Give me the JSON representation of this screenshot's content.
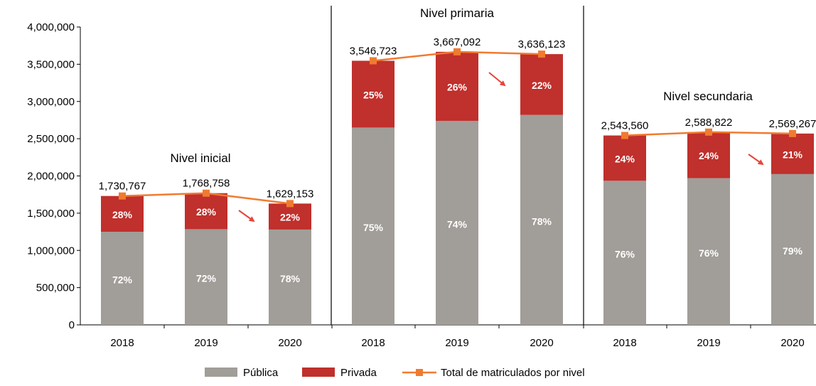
{
  "chart_data": {
    "type": "bar",
    "stacked": true,
    "ylim": [
      0,
      4000000
    ],
    "y_ticks": [
      0,
      500000,
      1000000,
      1500000,
      2000000,
      2500000,
      3000000,
      3500000,
      4000000
    ],
    "y_tick_labels": [
      "0",
      "500,000",
      "1,000,000",
      "1,500,000",
      "2,000,000",
      "2,500,000",
      "3,000,000",
      "3,500,000",
      "4,000,000"
    ],
    "colors": {
      "publica": "#a19d98",
      "privada": "#c0302c",
      "total": "#f07b30",
      "arrow": "#e8433a"
    },
    "legend": {
      "placement": "bottom",
      "items": [
        {
          "label": "Pública",
          "color": "#a19d98",
          "kind": "bar"
        },
        {
          "label": "Privada",
          "color": "#c0302c",
          "kind": "bar"
        },
        {
          "label": "Total de matriculados por nivel",
          "color": "#f07b30",
          "kind": "line"
        }
      ]
    },
    "panels": [
      {
        "title": "Nivel inicial",
        "categories": [
          "2018",
          "2019",
          "2020"
        ],
        "totals": [
          1730767,
          1768758,
          1629153
        ],
        "total_labels": [
          "1,730,767",
          "1,768,758",
          "1,629,153"
        ],
        "publica_share": [
          "72%",
          "72%",
          "78%"
        ],
        "privada_share": [
          "28%",
          "28%",
          "22%"
        ],
        "publica_values": [
          1250000,
          1285000,
          1280000
        ]
      },
      {
        "title": "Nivel primaria",
        "categories": [
          "2018",
          "2019",
          "2020"
        ],
        "totals": [
          3546723,
          3667092,
          3636123
        ],
        "total_labels": [
          "3,546,723",
          "3,667,092",
          "3,636,123"
        ],
        "publica_share": [
          "75%",
          "74%",
          "78%"
        ],
        "privada_share": [
          "25%",
          "26%",
          "22%"
        ],
        "publica_values": [
          2650000,
          2740000,
          2820000
        ]
      },
      {
        "title": "Nivel secundaria",
        "categories": [
          "2018",
          "2019",
          "2020"
        ],
        "totals": [
          2543560,
          2588822,
          2569267
        ],
        "total_labels": [
          "2,543,560",
          "2,588,822",
          "2,569,267"
        ],
        "publica_share": [
          "76%",
          "76%",
          "79%"
        ],
        "privada_share": [
          "24%",
          "24%",
          "21%"
        ],
        "publica_values": [
          1935000,
          1970000,
          2025000
        ]
      }
    ]
  }
}
